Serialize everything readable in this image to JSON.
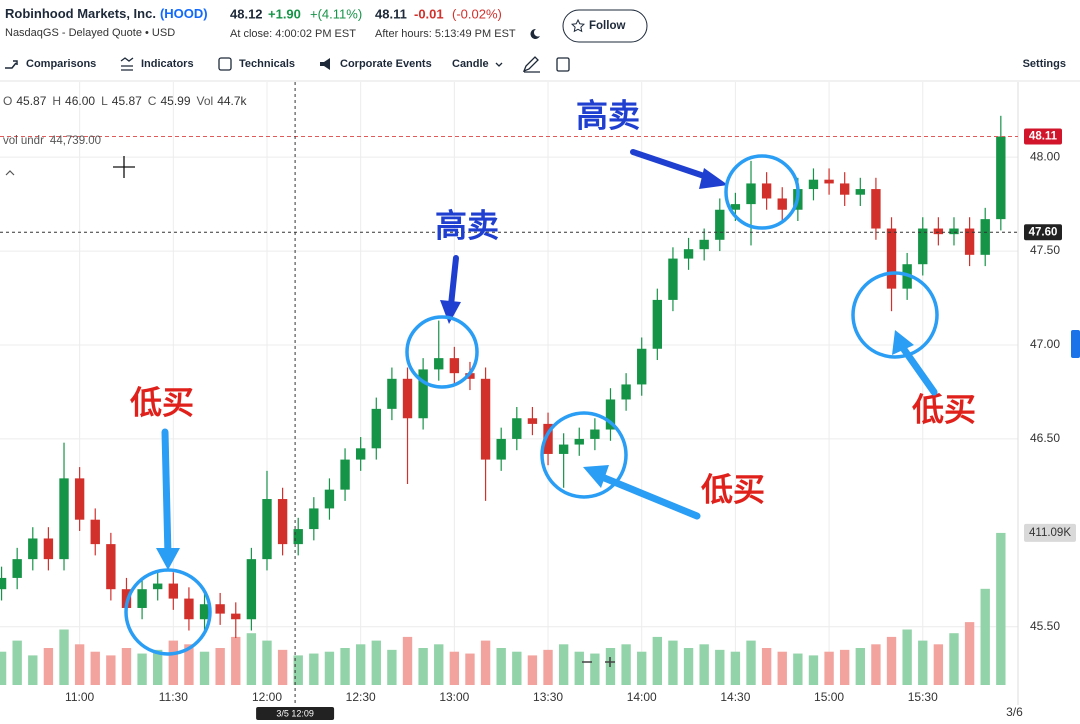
{
  "header": {
    "name": "Robinhood Markets, Inc.",
    "ticker": "(HOOD)",
    "exchange": "NasdaqGS - Delayed Quote • USD",
    "price": "48.12",
    "change": "+1.90",
    "change_pct": "+(4.11%)",
    "close_time": "At close: 4:00:02 PM EST",
    "ah_price": "48.11",
    "ah_change": "-0.01",
    "ah_change_pct": "(-0.02%)",
    "ah_time": "After hours: 5:13:49 PM EST",
    "follow": "Follow"
  },
  "toolbar": {
    "items": [
      "Comparisons",
      "Indicators",
      "Technicals",
      "Corporate Events",
      "Candle"
    ],
    "settings": "Settings"
  },
  "chart_data": {
    "type": "candlestick",
    "info": [
      {
        "k": "O",
        "v": "45.87"
      },
      {
        "k": "H",
        "v": "46.00"
      },
      {
        "k": "L",
        "v": "45.87"
      },
      {
        "k": "C",
        "v": "45.99"
      },
      {
        "k": "Vol",
        "v": "44.7k"
      }
    ],
    "vol_indicator": {
      "name": "vol undr",
      "value": "44,739.00"
    },
    "x": [
      635,
      640,
      645,
      650,
      655,
      660,
      665,
      670,
      675,
      680,
      685,
      690,
      695,
      700,
      705,
      710,
      715,
      720,
      725,
      730,
      735,
      740,
      745,
      750,
      755,
      760,
      765,
      770,
      775,
      780,
      785,
      790,
      795,
      800,
      805,
      810,
      815,
      820,
      825,
      830,
      835,
      840,
      845,
      850,
      855,
      860,
      865,
      870,
      875,
      880,
      885,
      890,
      895,
      900,
      905,
      910,
      915,
      920,
      925,
      930,
      935,
      940,
      945,
      950,
      955
    ],
    "open": [
      45.7,
      45.76,
      45.86,
      45.97,
      45.86,
      46.29,
      46.07,
      45.94,
      45.7,
      45.6,
      45.7,
      45.73,
      45.65,
      45.54,
      45.62,
      45.57,
      45.54,
      45.86,
      46.18,
      45.94,
      46.02,
      46.13,
      46.23,
      46.39,
      46.45,
      46.66,
      46.82,
      46.61,
      46.87,
      46.93,
      46.85,
      46.82,
      46.39,
      46.5,
      46.61,
      46.58,
      46.42,
      46.47,
      46.5,
      46.55,
      46.71,
      46.79,
      46.98,
      47.24,
      47.46,
      47.51,
      47.56,
      47.72,
      47.75,
      47.86,
      47.78,
      47.72,
      47.83,
      47.88,
      47.86,
      47.8,
      47.83,
      47.62,
      47.3,
      47.43,
      47.62,
      47.59,
      47.62,
      47.48,
      47.67
    ],
    "high": [
      45.82,
      45.92,
      46.03,
      46.03,
      46.48,
      46.35,
      46.13,
      46.0,
      45.76,
      45.76,
      45.79,
      45.79,
      45.71,
      45.68,
      45.68,
      45.63,
      45.92,
      46.33,
      46.24,
      46.08,
      46.19,
      46.29,
      46.45,
      46.51,
      46.72,
      46.88,
      46.88,
      46.93,
      47.13,
      46.99,
      46.91,
      46.88,
      46.56,
      46.67,
      46.67,
      46.64,
      46.53,
      46.56,
      46.61,
      46.77,
      46.85,
      47.04,
      47.3,
      47.52,
      47.57,
      47.62,
      47.78,
      47.81,
      47.98,
      47.92,
      47.84,
      47.89,
      47.94,
      47.94,
      47.92,
      47.89,
      47.89,
      47.68,
      47.49,
      47.68,
      47.68,
      47.68,
      47.68,
      47.73,
      48.22
    ],
    "low": [
      45.64,
      45.7,
      45.8,
      45.8,
      45.8,
      46.01,
      45.88,
      45.64,
      45.54,
      45.54,
      45.64,
      45.59,
      45.48,
      45.48,
      45.51,
      45.44,
      45.48,
      45.8,
      45.88,
      45.88,
      45.96,
      46.07,
      46.17,
      46.33,
      46.39,
      46.6,
      46.26,
      46.55,
      46.81,
      46.79,
      46.76,
      46.17,
      46.33,
      46.44,
      46.52,
      46.36,
      46.24,
      46.41,
      46.44,
      46.49,
      46.65,
      46.73,
      46.92,
      47.18,
      47.4,
      47.45,
      47.5,
      47.66,
      47.53,
      47.72,
      47.66,
      47.66,
      47.77,
      47.8,
      47.74,
      47.74,
      47.56,
      47.18,
      47.24,
      47.37,
      47.53,
      47.53,
      47.42,
      47.42,
      47.61
    ],
    "close": [
      45.76,
      45.86,
      45.97,
      45.86,
      46.29,
      46.07,
      45.94,
      45.7,
      45.6,
      45.7,
      45.73,
      45.65,
      45.54,
      45.62,
      45.57,
      45.54,
      45.86,
      46.18,
      45.94,
      46.02,
      46.13,
      46.23,
      46.39,
      46.45,
      46.66,
      46.82,
      46.61,
      46.87,
      46.93,
      46.85,
      46.82,
      46.39,
      46.5,
      46.61,
      46.58,
      46.42,
      46.47,
      46.5,
      46.55,
      46.71,
      46.79,
      46.98,
      47.24,
      47.46,
      47.51,
      47.56,
      47.72,
      47.75,
      47.86,
      47.78,
      47.72,
      47.83,
      47.88,
      47.86,
      47.8,
      47.83,
      47.62,
      47.3,
      47.43,
      47.62,
      47.59,
      47.62,
      47.48,
      47.67,
      48.11
    ],
    "volume": {
      "values": [
        90,
        120,
        80,
        100,
        150,
        110,
        90,
        80,
        100,
        85,
        95,
        120,
        110,
        90,
        100,
        130,
        140,
        120,
        95,
        80,
        85,
        90,
        100,
        110,
        120,
        95,
        130,
        100,
        110,
        90,
        85,
        120,
        100,
        90,
        80,
        95,
        110,
        90,
        85,
        100,
        110,
        90,
        130,
        120,
        100,
        110,
        95,
        90,
        120,
        100,
        90,
        85,
        80,
        90,
        95,
        100,
        110,
        130,
        150,
        120,
        110,
        140,
        170,
        260,
        411.09
      ],
      "last_label": {
        "value": 411.09,
        "label": "411.09K"
      }
    },
    "up_color": "#159447",
    "down_color": "#d2302b",
    "up_volume_color": "#93d3a9",
    "down_volume_color": "#f2a39d",
    "xlim": [
      634.5,
      960.5
    ],
    "xticks": [
      {
        "value": 660,
        "label": "11:00"
      },
      {
        "value": 690,
        "label": "11:30"
      },
      {
        "value": 720,
        "label": "12:00"
      },
      {
        "value": 750,
        "label": "12:30"
      },
      {
        "value": 780,
        "label": "13:00"
      },
      {
        "value": 810,
        "label": "13:30"
      },
      {
        "value": 840,
        "label": "14:00"
      },
      {
        "value": 870,
        "label": "14:30"
      },
      {
        "value": 900,
        "label": "15:00"
      },
      {
        "value": 930,
        "label": "15:30"
      }
    ],
    "date_label": {
      "value": 960,
      "label": "3/6"
    },
    "ylim": [
      45.19,
      48.4
    ],
    "yticks": [
      {
        "value": 45.5,
        "label": "45.50"
      },
      {
        "value": 46.5,
        "label": "46.50"
      },
      {
        "value": 47,
        "label": "47.00"
      },
      {
        "value": 47.5,
        "label": "47.50"
      },
      {
        "value": 48,
        "label": "48.00"
      }
    ],
    "y2lim": [
      0,
      1630
    ],
    "grid": true,
    "last_price": 48.11,
    "crosshair_price": {
      "value": 47.6,
      "label": "47.60"
    },
    "crosshair_time": {
      "value": 729,
      "label": "3/5 12:09"
    },
    "annotations": [
      "低买",
      "高卖",
      "高卖",
      "低买",
      "低买"
    ]
  }
}
